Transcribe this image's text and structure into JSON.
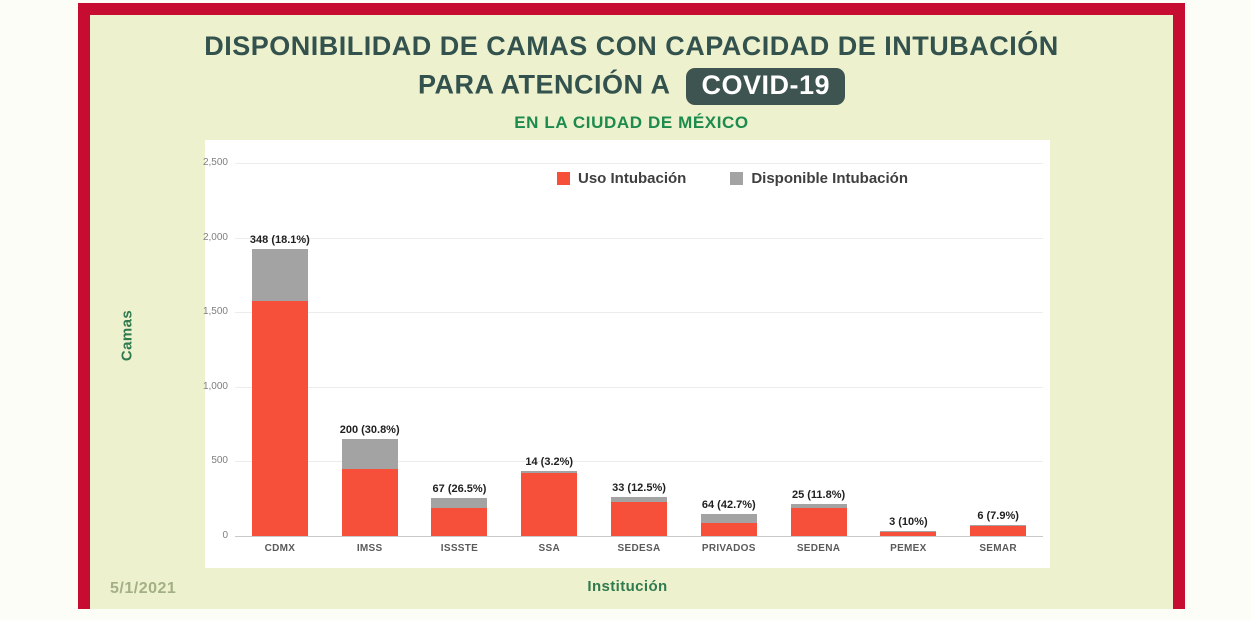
{
  "header": {
    "title_regular": "DISPONIBILIDAD DE CAMAS ",
    "title_bold": "CON CAPACIDAD DE INTUBACIÓN",
    "title_line2": "PARA ATENCIÓN A",
    "covid_badge": "COVID-19",
    "subtitle": "EN LA CIUDAD DE MÉXICO"
  },
  "footer": {
    "date": "5/1/2021"
  },
  "colors": {
    "frame_red": "#c60c30",
    "card_background": "#edf1cd",
    "title_teal": "#33524d",
    "subtitle_green": "#1d8a4e",
    "badge_background": "#3e5450",
    "bar_red": "#f6503a",
    "bar_gray": "#a3a3a3"
  },
  "chart_data": {
    "type": "bar",
    "stacked": true,
    "xlabel": "Institución",
    "ylabel": "Camas",
    "ylim": [
      0,
      2500
    ],
    "grid": true,
    "legend_position": "top-center",
    "yticks": [
      "0",
      "500",
      "1,000",
      "1,500",
      "2,000",
      "2,500"
    ],
    "categories": [
      "CDMX",
      "IMSS",
      "ISSSTE",
      "SSA",
      "SEDESA",
      "PRIVADOS",
      "SEDENA",
      "PEMEX",
      "SEMAR"
    ],
    "series": [
      {
        "name": "Uso Intubación",
        "color": "#f6503a",
        "values": [
          1575,
          449,
          186,
          424,
          231,
          86,
          187,
          27,
          70
        ]
      },
      {
        "name": "Disponible Intubación",
        "color": "#a3a3a3",
        "values": [
          348,
          200,
          67,
          14,
          33,
          64,
          25,
          3,
          6
        ]
      }
    ],
    "bar_labels": [
      "348 (18.1%)",
      "200 (30.8%)",
      "67 (26.5%)",
      "14 (3.2%)",
      "33 (12.5%)",
      "64 (42.7%)",
      "25 (11.8%)",
      "3 (10%)",
      "6 (7.9%)"
    ]
  }
}
